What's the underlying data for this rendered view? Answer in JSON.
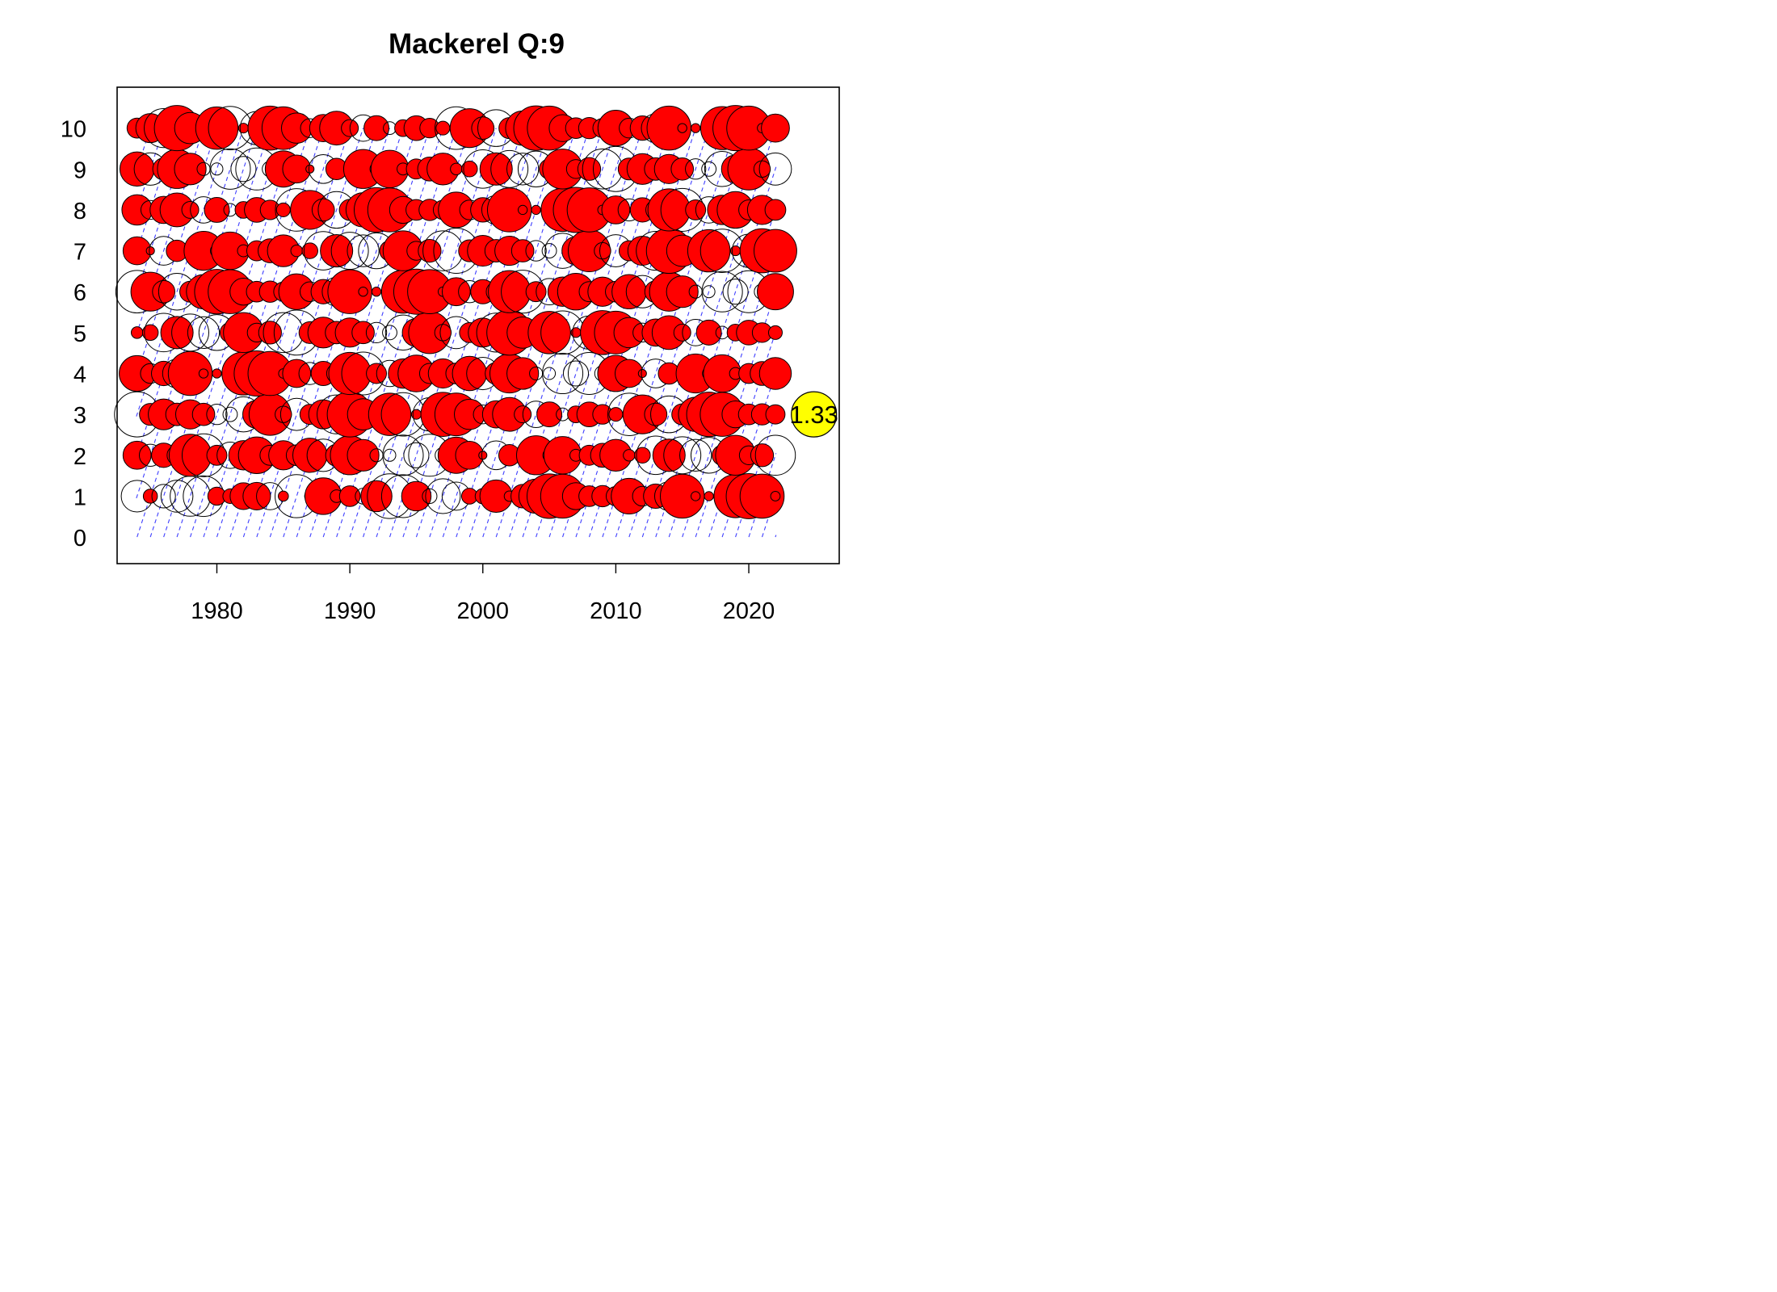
{
  "chart_data": {
    "type": "scatter",
    "subtype": "bubble",
    "title": "Mackerel Q:9",
    "xlabel": "",
    "ylabel": "",
    "x_ticks": [
      1980,
      1990,
      2000,
      2010,
      2020
    ],
    "y_ticks": [
      0,
      1,
      2,
      3,
      4,
      5,
      6,
      7,
      8,
      9,
      10
    ],
    "xlim": [
      1972.5,
      2026.8
    ],
    "ylim": [
      -0.65,
      11.0
    ],
    "years": [
      1974,
      1975,
      1976,
      1977,
      1978,
      1979,
      1980,
      1981,
      1982,
      1983,
      1984,
      1985,
      1986,
      1987,
      1988,
      1989,
      1990,
      1991,
      1992,
      1993,
      1994,
      1995,
      1996,
      1997,
      1998,
      1999,
      2000,
      2001,
      2002,
      2003,
      2004,
      2005,
      2006,
      2007,
      2008,
      2009,
      2010,
      2011,
      2012,
      2013,
      2014,
      2015,
      2016,
      2017,
      2018,
      2019,
      2020,
      2021,
      2022
    ],
    "ages": [
      1,
      2,
      3,
      4,
      5,
      6,
      7,
      8,
      9,
      10
    ],
    "legend_value": "1.33",
    "legend_magnitude": 1.33,
    "legend_color": "#ffff00",
    "positive_fill": "#ff0000",
    "negative_fill": "none",
    "cohort_line_color": "#0000ff",
    "grid": false
  }
}
